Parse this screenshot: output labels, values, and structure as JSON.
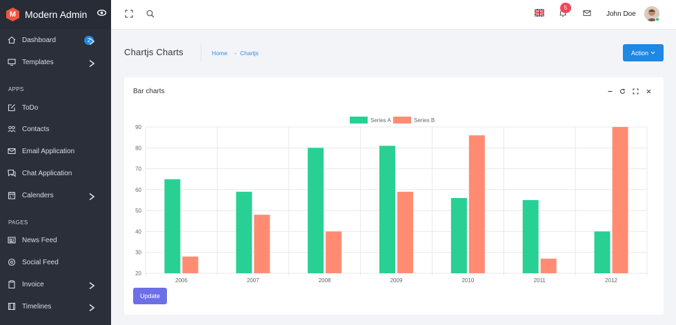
{
  "sidebar": {
    "brand": {
      "logo_letter": "M",
      "name": "Modern Admin"
    },
    "items": [
      {
        "label": "Dashboard",
        "icon": "home-icon",
        "badge": "2",
        "has_children": true
      },
      {
        "label": "Templates",
        "icon": "monitor-icon",
        "has_children": true
      },
      {
        "label": "ToDo",
        "icon": "edit-icon",
        "has_children": false
      },
      {
        "label": "Contacts",
        "icon": "users-icon",
        "has_children": false
      },
      {
        "label": "Email Application",
        "icon": "mail-icon",
        "has_children": false
      },
      {
        "label": "Chat Application",
        "icon": "chat-icon",
        "has_children": false
      },
      {
        "label": "Calenders",
        "icon": "calendar-icon",
        "has_children": true
      },
      {
        "label": "News Feed",
        "icon": "newspaper-icon",
        "has_children": false
      },
      {
        "label": "Social Feed",
        "icon": "social-icon",
        "has_children": false
      },
      {
        "label": "Invoice",
        "icon": "clipboard-icon",
        "has_children": true
      },
      {
        "label": "Timelines",
        "icon": "film-icon",
        "has_children": true
      }
    ],
    "sections": {
      "apps": "APPS",
      "pages": "PAGES"
    }
  },
  "topbar": {
    "notification_count": "5",
    "user_name": "John Doe",
    "flag": "uk-flag-icon"
  },
  "header": {
    "title": "Chartjs Charts",
    "breadcrumb": [
      "Home",
      "Chartjs"
    ],
    "action_label": "Action"
  },
  "card": {
    "title": "Bar charts",
    "update_label": "Update"
  },
  "colors": {
    "series_a": "#28d094",
    "series_b": "#ff8c72",
    "primary": "#1e88e5",
    "update": "#6c6fe6"
  },
  "chart_data": {
    "type": "bar",
    "categories": [
      "2006",
      "2007",
      "2008",
      "2009",
      "2010",
      "2011",
      "2012"
    ],
    "series": [
      {
        "name": "Series A",
        "values": [
          65,
          59,
          80,
          81,
          56,
          55,
          40
        ]
      },
      {
        "name": "Series B",
        "values": [
          28,
          48,
          40,
          59,
          86,
          27,
          90
        ]
      }
    ],
    "ylim": [
      20,
      90
    ],
    "yticks": [
      20,
      30,
      40,
      50,
      60,
      70,
      80,
      90
    ],
    "grid": true,
    "legend": "top-center"
  }
}
